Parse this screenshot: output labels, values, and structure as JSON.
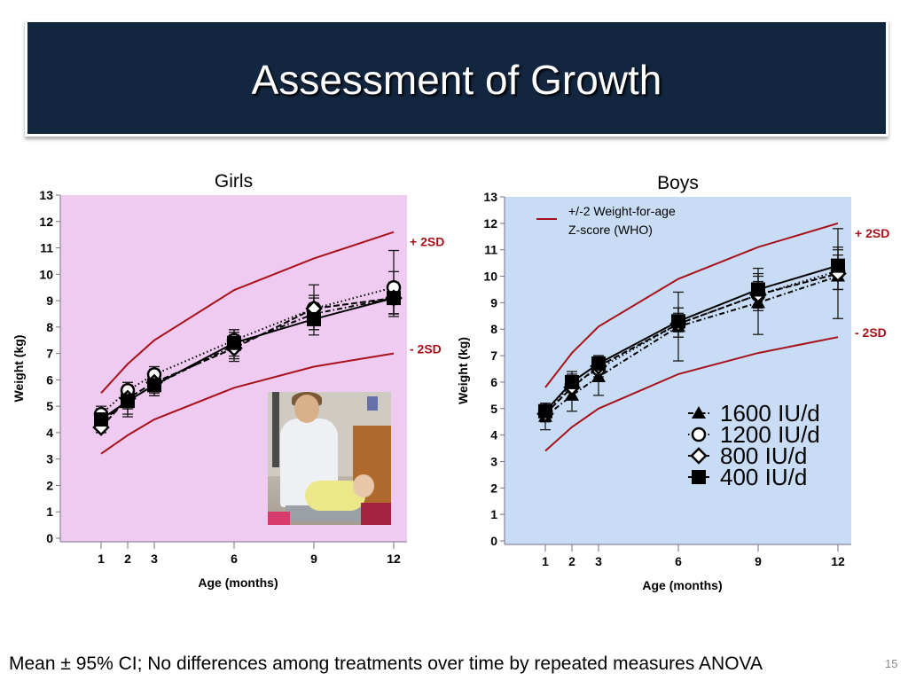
{
  "slide": {
    "title": "Assessment of Growth",
    "caption": "Mean ± 95% CI; No differences among treatments over time by repeated measures ANOVA",
    "page_number": "15"
  },
  "photo": {
    "description": "Clinician weighing an infant on a baby scale"
  },
  "colors": {
    "title_bg": "#13263f",
    "girls_bg": "#efcbf2",
    "boys_bg": "#c8ddf5",
    "who_line": "#a8111b",
    "series": "#000000"
  },
  "chart_data": [
    {
      "type": "line",
      "title": "Girls",
      "xlabel": "Age (months)",
      "ylabel": "Weight (kg)",
      "x": [
        1,
        2,
        3,
        6,
        9,
        12
      ],
      "xticks": [
        "1",
        "2",
        "3",
        "6",
        "9",
        "12"
      ],
      "yticks": [
        "0",
        "1",
        "2",
        "3",
        "4",
        "5",
        "6",
        "7",
        "8",
        "9",
        "10",
        "11",
        "12",
        "13"
      ],
      "ylim": [
        0,
        13
      ],
      "grid": false,
      "reference_lines": [
        {
          "name": "+ 2SD",
          "values": [
            5.5,
            6.6,
            7.5,
            9.4,
            10.6,
            11.6
          ]
        },
        {
          "name": "- 2SD",
          "values": [
            3.2,
            3.9,
            4.5,
            5.7,
            6.5,
            7.0
          ]
        }
      ],
      "series": [
        {
          "name": "1600 IU/d",
          "marker": "triangle",
          "line": "dash-dot",
          "values": [
            4.4,
            5.2,
            5.8,
            7.3,
            8.5,
            9.1
          ],
          "ci_low": [
            4.0,
            4.6,
            5.4,
            6.8,
            7.9,
            8.5
          ],
          "ci_high": [
            4.9,
            5.8,
            6.3,
            7.8,
            9.1,
            9.7
          ]
        },
        {
          "name": "1200 IU/d",
          "marker": "circle-open",
          "line": "dotted",
          "values": [
            4.7,
            5.6,
            6.2,
            7.5,
            8.7,
            9.5
          ],
          "ci_low": [
            4.3,
            5.2,
            5.8,
            7.1,
            7.9,
            8.5
          ],
          "ci_high": [
            5.0,
            5.9,
            6.5,
            7.9,
            9.6,
            10.9
          ]
        },
        {
          "name": "800 IU/d",
          "marker": "diamond-open",
          "line": "dashed",
          "values": [
            4.2,
            5.3,
            5.9,
            7.2,
            8.7,
            9.1
          ],
          "ci_low": [
            4.0,
            4.9,
            5.5,
            6.7,
            8.2,
            8.4
          ],
          "ci_high": [
            4.7,
            5.9,
            6.4,
            7.7,
            9.2,
            10.1
          ]
        },
        {
          "name": "400 IU/d",
          "marker": "square",
          "line": "solid",
          "values": [
            4.5,
            5.2,
            5.8,
            7.4,
            8.3,
            9.1
          ],
          "ci_low": [
            4.2,
            4.7,
            5.4,
            6.9,
            7.7,
            8.5
          ],
          "ci_high": [
            4.9,
            5.7,
            6.2,
            7.9,
            8.9,
            9.6
          ]
        }
      ],
      "annotations": [
        "+ 2SD",
        "- 2SD"
      ]
    },
    {
      "type": "line",
      "title": "Boys",
      "xlabel": "Age (months)",
      "ylabel": "Weight (kg)",
      "x": [
        1,
        2,
        3,
        6,
        9,
        12
      ],
      "xticks": [
        "1",
        "2",
        "3",
        "6",
        "9",
        "12"
      ],
      "yticks": [
        "0",
        "1",
        "2",
        "3",
        "4",
        "5",
        "6",
        "7",
        "8",
        "9",
        "10",
        "11",
        "12",
        "13"
      ],
      "ylim": [
        0,
        13
      ],
      "grid": false,
      "legend_position": "bottom-right",
      "who_legend": "+/-2 Weight-for-age Z-score (WHO)",
      "who_legend_lines": [
        "+/-2 Weight-for-age",
        "Z-score (WHO)"
      ],
      "reference_lines": [
        {
          "name": "+ 2SD",
          "values": [
            5.8,
            7.1,
            8.1,
            9.9,
            11.1,
            12.0
          ]
        },
        {
          "name": "- 2SD",
          "values": [
            3.4,
            4.3,
            5.0,
            6.3,
            7.1,
            7.7
          ]
        }
      ],
      "series": [
        {
          "name": "1600 IU/d",
          "marker": "triangle",
          "line": "dash-dot",
          "values": [
            4.7,
            5.5,
            6.2,
            8.1,
            9.0,
            10.0
          ],
          "ci_low": [
            4.2,
            4.9,
            5.5,
            6.8,
            7.8,
            8.4
          ],
          "ci_high": [
            5.2,
            6.1,
            6.9,
            9.4,
            10.3,
            11.8
          ]
        },
        {
          "name": "1200 IU/d",
          "marker": "circle-open",
          "line": "dotted",
          "values": [
            4.9,
            5.9,
            6.5,
            8.2,
            9.3,
            10.2
          ],
          "ci_low": [
            4.5,
            5.4,
            6.1,
            7.7,
            8.7,
            9.5
          ],
          "ci_high": [
            5.2,
            6.3,
            6.9,
            8.8,
            10.0,
            11.0
          ]
        },
        {
          "name": "800 IU/d",
          "marker": "diamond-open",
          "line": "dashed",
          "values": [
            4.8,
            5.8,
            6.6,
            8.2,
            9.3,
            10.1
          ],
          "ci_low": [
            4.5,
            5.4,
            6.2,
            7.7,
            8.8,
            9.5
          ],
          "ci_high": [
            5.1,
            6.2,
            7.0,
            8.6,
            9.8,
            10.8
          ]
        },
        {
          "name": "400 IU/d",
          "marker": "square",
          "line": "solid",
          "values": [
            4.9,
            6.0,
            6.7,
            8.3,
            9.5,
            10.4
          ],
          "ci_low": [
            4.6,
            5.6,
            6.4,
            7.9,
            8.9,
            9.9
          ],
          "ci_high": [
            5.2,
            6.4,
            7.0,
            8.8,
            10.1,
            11.1
          ]
        }
      ],
      "annotations": [
        "+ 2SD",
        "- 2SD"
      ]
    }
  ]
}
